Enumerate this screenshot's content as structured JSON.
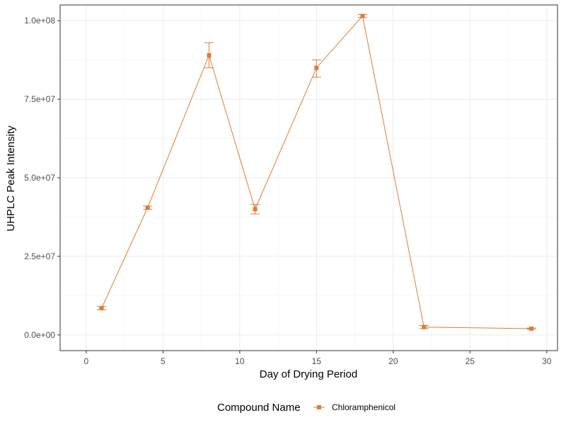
{
  "chart_data": {
    "type": "line",
    "title": "",
    "xlabel": "Day of Drying Period",
    "ylabel": "UHPLC Peak Intensity",
    "xlim": [
      -1.7,
      30.7
    ],
    "ylim": [
      -5000000,
      105000000
    ],
    "x_ticks": [
      0,
      5,
      10,
      15,
      20,
      25,
      30
    ],
    "x_tick_labels": [
      "0",
      "5",
      "10",
      "15",
      "20",
      "25",
      "30"
    ],
    "y_ticks": [
      0,
      25000000,
      50000000,
      75000000,
      100000000
    ],
    "y_tick_labels": [
      "0.0e+00",
      "2.5e+07",
      "5.0e+07",
      "7.5e+07",
      "1.0e+08"
    ],
    "grid": true,
    "legend_position": "bottom",
    "legend_title": "Compound Name",
    "color": "#E07B39",
    "series": [
      {
        "name": "Chloramphenicol",
        "points": [
          {
            "x": 1,
            "y": 8500000,
            "ymin": 8000000,
            "ymax": 9000000
          },
          {
            "x": 4,
            "y": 40500000,
            "ymin": 40000000,
            "ymax": 41000000
          },
          {
            "x": 8,
            "y": 89000000,
            "ymin": 85000000,
            "ymax": 93000000
          },
          {
            "x": 11,
            "y": 40000000,
            "ymin": 38500000,
            "ymax": 41500000
          },
          {
            "x": 15,
            "y": 85000000,
            "ymin": 82000000,
            "ymax": 87500000
          },
          {
            "x": 18,
            "y": 101500000,
            "ymin": 101000000,
            "ymax": 102000000
          },
          {
            "x": 22,
            "y": 2500000,
            "ymin": 2000000,
            "ymax": 3000000
          },
          {
            "x": 29,
            "y": 2000000,
            "ymin": 1800000,
            "ymax": 2200000
          }
        ]
      }
    ]
  }
}
